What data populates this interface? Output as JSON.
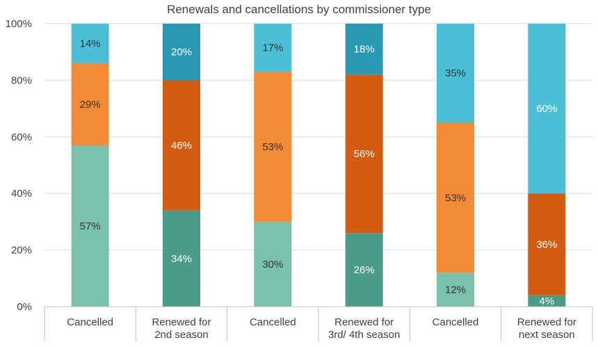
{
  "chart_data": {
    "type": "bar",
    "stacked": true,
    "title": "Renewals and cancellations by commissioner type",
    "xlabel": "",
    "ylabel": "",
    "ylim": [
      0,
      100
    ],
    "y_ticks": [
      "0%",
      "20%",
      "40%",
      "60%",
      "80%",
      "100%"
    ],
    "grid": true,
    "categories": [
      [
        "Cancelled"
      ],
      [
        "Renewed for",
        "2nd season"
      ],
      [
        "Cancelled"
      ],
      [
        "Renewed for",
        "3rd/ 4th season"
      ],
      [
        "Cancelled"
      ],
      [
        "Renewed for",
        "next season"
      ]
    ],
    "segments": [
      [
        {
          "value": 57,
          "label": "57%",
          "color": "#7bc2ae",
          "label_color": "#333333"
        },
        {
          "value": 29,
          "label": "29%",
          "color": "#f28a36",
          "label_color": "#333333"
        },
        {
          "value": 14,
          "label": "14%",
          "color": "#4bbfd6",
          "label_color": "#333333"
        }
      ],
      [
        {
          "value": 34,
          "label": "34%",
          "color": "#4a9c88",
          "label_color": "#ffffff"
        },
        {
          "value": 46,
          "label": "46%",
          "color": "#d45b12",
          "label_color": "#ffffff"
        },
        {
          "value": 20,
          "label": "20%",
          "color": "#2999b3",
          "label_color": "#ffffff"
        }
      ],
      [
        {
          "value": 30,
          "label": "30%",
          "color": "#7bc2ae",
          "label_color": "#333333"
        },
        {
          "value": 53,
          "label": "53%",
          "color": "#f28a36",
          "label_color": "#333333"
        },
        {
          "value": 17,
          "label": "17%",
          "color": "#4bbfd6",
          "label_color": "#333333"
        }
      ],
      [
        {
          "value": 26,
          "label": "26%",
          "color": "#4a9c88",
          "label_color": "#ffffff"
        },
        {
          "value": 56,
          "label": "56%",
          "color": "#d45b12",
          "label_color": "#ffffff"
        },
        {
          "value": 18,
          "label": "18%",
          "color": "#2999b3",
          "label_color": "#ffffff"
        }
      ],
      [
        {
          "value": 12,
          "label": "12%",
          "color": "#7bc2ae",
          "label_color": "#333333"
        },
        {
          "value": 53,
          "label": "53%",
          "color": "#f28a36",
          "label_color": "#333333"
        },
        {
          "value": 35,
          "label": "35%",
          "color": "#4bbfd6",
          "label_color": "#333333"
        }
      ],
      [
        {
          "value": 4,
          "label": "4%",
          "color": "#4a9c88",
          "label_color": "#ffffff"
        },
        {
          "value": 36,
          "label": "36%",
          "color": "#d45b12",
          "label_color": "#ffffff"
        },
        {
          "value": 60,
          "label": "60%",
          "color": "#4bbfd6",
          "label_color": "#ffffff"
        }
      ]
    ],
    "colors": {
      "gridline": "#d9d9d9",
      "axis": "#bfbfbf",
      "text": "#404040"
    }
  }
}
